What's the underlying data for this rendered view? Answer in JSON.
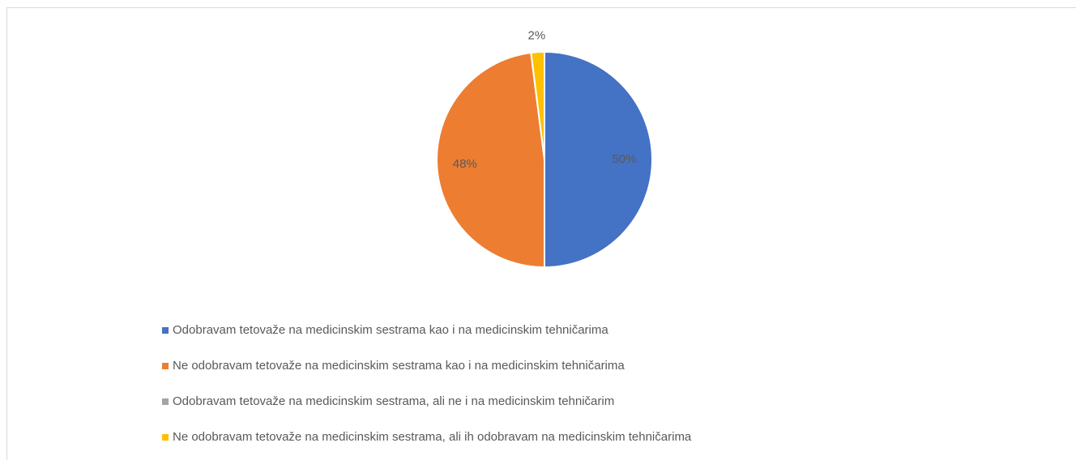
{
  "chart_data": {
    "type": "pie",
    "categories": [
      "Odobravam tetovaže na medicinskim sestrama kao i na medicinskim tehničarima",
      "Ne odobravam tetovaže na medicinskim sestrama kao i na medicinskim tehničarima",
      "Odobravam tetovaže na medicinskim sestrama, ali ne i na medicinskim tehničarim",
      "Ne odobravam tetovaže na medicinskim sestrama, ali ih odobravam na medicinskim tehničarima"
    ],
    "values": [
      50,
      48,
      0,
      2
    ],
    "value_labels": [
      "50%",
      "48%",
      null,
      "2%"
    ],
    "colors": [
      "#4472c4",
      "#ed7d31",
      "#a5a5a5",
      "#ffc000"
    ],
    "legend": "bottom"
  }
}
